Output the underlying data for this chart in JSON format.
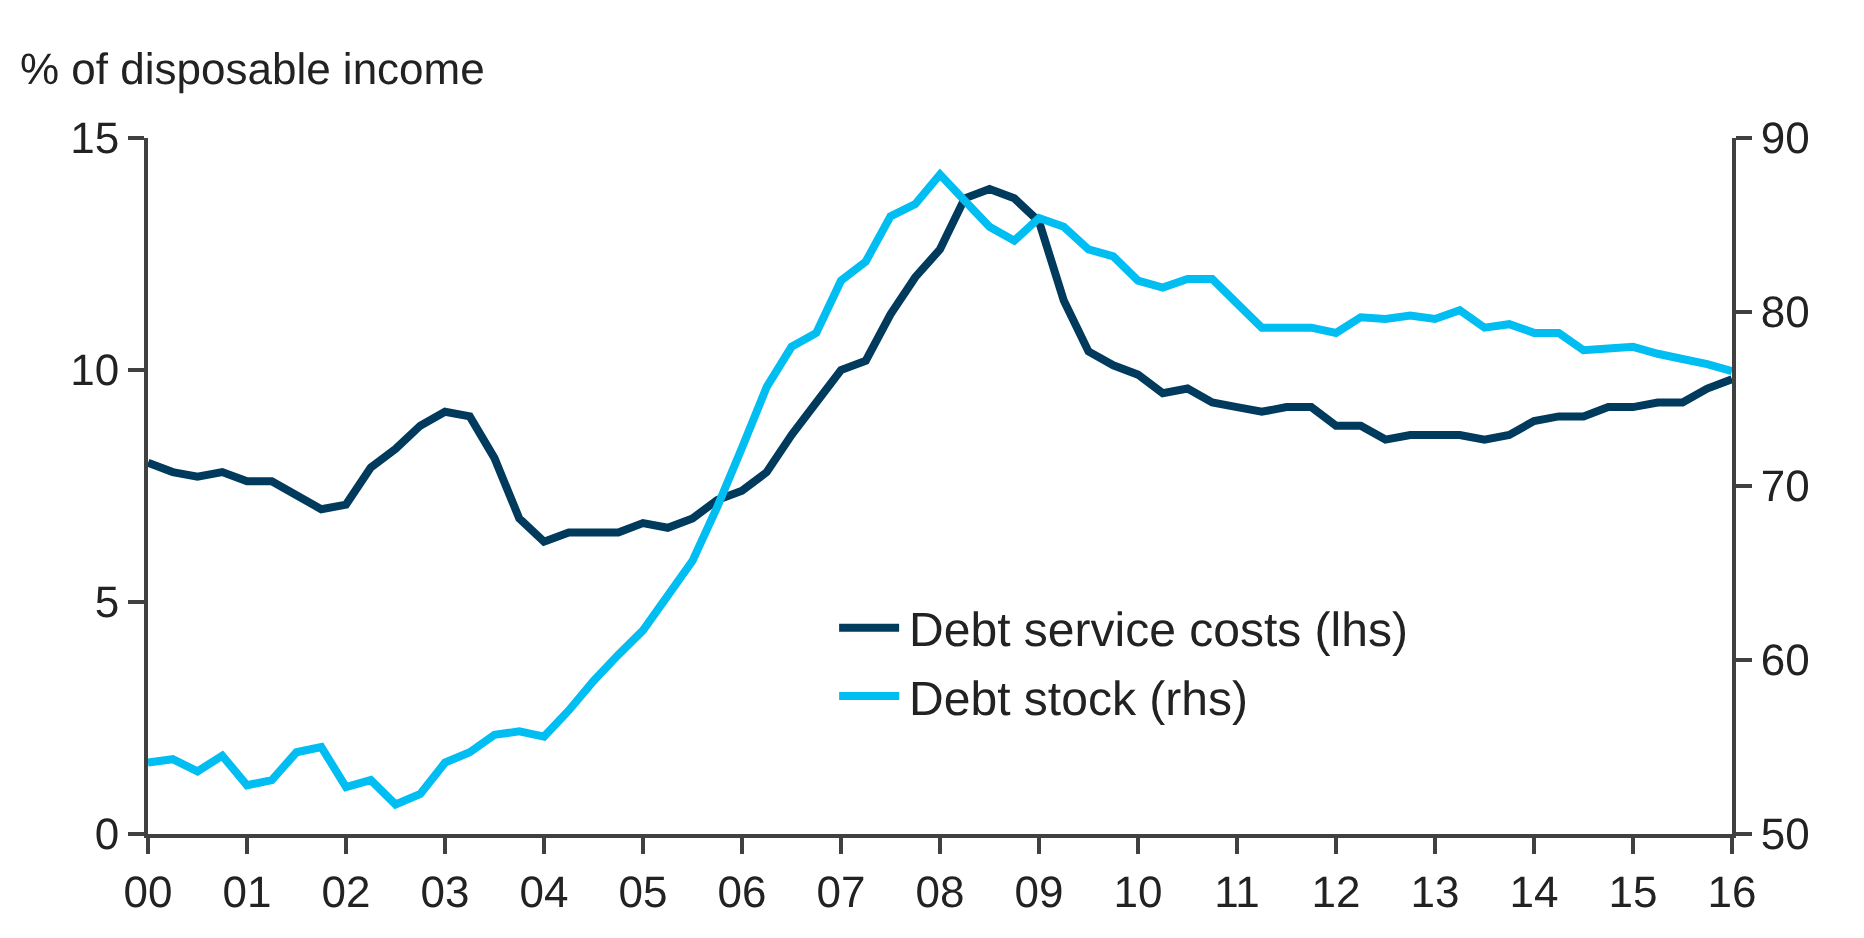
{
  "chart_data": {
    "type": "line",
    "ylabel": "% of disposable income",
    "x": [
      0,
      0.25,
      0.5,
      0.75,
      1,
      1.25,
      1.5,
      1.75,
      2,
      2.25,
      2.5,
      2.75,
      3,
      3.25,
      3.5,
      3.75,
      4,
      4.25,
      4.5,
      4.75,
      5,
      5.25,
      5.5,
      5.75,
      6,
      6.25,
      6.5,
      6.75,
      7,
      7.25,
      7.5,
      7.75,
      8,
      8.25,
      8.5,
      8.75,
      9,
      9.25,
      9.5,
      9.75,
      10,
      10.25,
      10.5,
      10.75,
      11,
      11.25,
      11.5,
      11.75,
      12,
      12.25,
      12.5,
      12.75,
      13,
      13.25,
      13.5,
      13.75,
      14,
      14.25,
      14.5,
      14.75,
      15,
      15.25,
      15.5,
      15.75,
      16
    ],
    "series": [
      {
        "name": "Debt service costs (lhs)",
        "color": "#003a5d",
        "values": [
          8.0,
          7.8,
          7.7,
          7.8,
          7.6,
          7.6,
          7.3,
          7.0,
          7.1,
          7.9,
          8.3,
          8.8,
          9.1,
          9.0,
          8.1,
          6.8,
          6.3,
          6.5,
          6.5,
          6.5,
          6.7,
          6.6,
          6.8,
          7.2,
          7.4,
          7.8,
          8.6,
          9.3,
          10.0,
          10.2,
          11.2,
          12.0,
          12.6,
          13.7,
          13.9,
          13.7,
          13.2,
          11.5,
          10.4,
          10.1,
          9.9,
          9.5,
          9.6,
          9.3,
          9.2,
          9.1,
          9.2,
          9.2,
          8.8,
          8.8,
          8.5,
          8.6,
          8.6,
          8.6,
          8.5,
          8.6,
          8.9,
          9.0,
          9.0,
          9.2,
          9.2,
          9.3,
          9.3,
          9.6,
          9.8
        ]
      },
      {
        "name": "Debt stock (rhs)",
        "color": "#00bdf2",
        "axis": "y2",
        "values": [
          54.1,
          54.3,
          53.6,
          54.5,
          52.8,
          53.1,
          54.7,
          55.0,
          52.7,
          53.1,
          51.7,
          52.3,
          54.1,
          54.7,
          55.7,
          55.9,
          55.6,
          57.1,
          58.8,
          60.3,
          61.7,
          63.7,
          65.7,
          68.8,
          72.2,
          75.7,
          78.0,
          78.8,
          81.8,
          82.9,
          85.5,
          86.2,
          87.9,
          86.4,
          84.9,
          84.1,
          85.4,
          84.9,
          83.6,
          83.2,
          81.8,
          81.4,
          81.9,
          81.9,
          80.5,
          79.1,
          79.1,
          79.1,
          78.8,
          79.7,
          79.6,
          79.8,
          79.6,
          80.1,
          79.1,
          79.3,
          78.8,
          78.8,
          77.8,
          77.9,
          78.0,
          77.6,
          77.3,
          77.0,
          76.6
        ]
      }
    ],
    "xlim": [
      0,
      16
    ],
    "xticks": [
      {
        "value": 0,
        "label": "00"
      },
      {
        "value": 1,
        "label": "01"
      },
      {
        "value": 2,
        "label": "02"
      },
      {
        "value": 3,
        "label": "03"
      },
      {
        "value": 4,
        "label": "04"
      },
      {
        "value": 5,
        "label": "05"
      },
      {
        "value": 6,
        "label": "06"
      },
      {
        "value": 7,
        "label": "07"
      },
      {
        "value": 8,
        "label": "08"
      },
      {
        "value": 9,
        "label": "09"
      },
      {
        "value": 10,
        "label": "10"
      },
      {
        "value": 11,
        "label": "11"
      },
      {
        "value": 12,
        "label": "12"
      },
      {
        "value": 13,
        "label": "13"
      },
      {
        "value": 14,
        "label": "14"
      },
      {
        "value": 15,
        "label": "15"
      },
      {
        "value": 16,
        "label": "16"
      }
    ],
    "ylim": [
      0,
      15
    ],
    "yticks": [
      0,
      5,
      10,
      15
    ],
    "y2lim": [
      50,
      90
    ],
    "y2ticks": [
      50,
      60,
      70,
      80,
      90
    ],
    "grid": false,
    "legend": "bottom right",
    "marker": "none",
    "line_style": "solid"
  }
}
